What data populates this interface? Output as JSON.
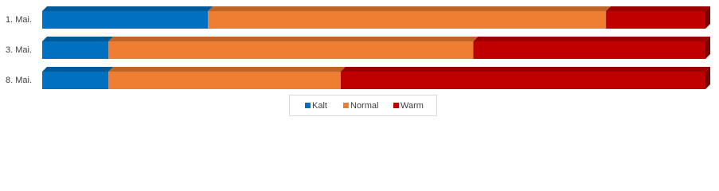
{
  "chart_data": {
    "type": "stacked-bar-3d-horizontal",
    "categories": [
      "1. Mai.",
      "3. Mai.",
      "8. Mai."
    ],
    "series": [
      {
        "name": "Kalt",
        "color": "#0070c0",
        "values": [
          25,
          10,
          10
        ]
      },
      {
        "name": "Normal",
        "color": "#ed7d31",
        "values": [
          60,
          55,
          35
        ]
      },
      {
        "name": "Warm",
        "color": "#c00000",
        "values": [
          15,
          35,
          55
        ]
      }
    ],
    "legend": "bottom"
  }
}
